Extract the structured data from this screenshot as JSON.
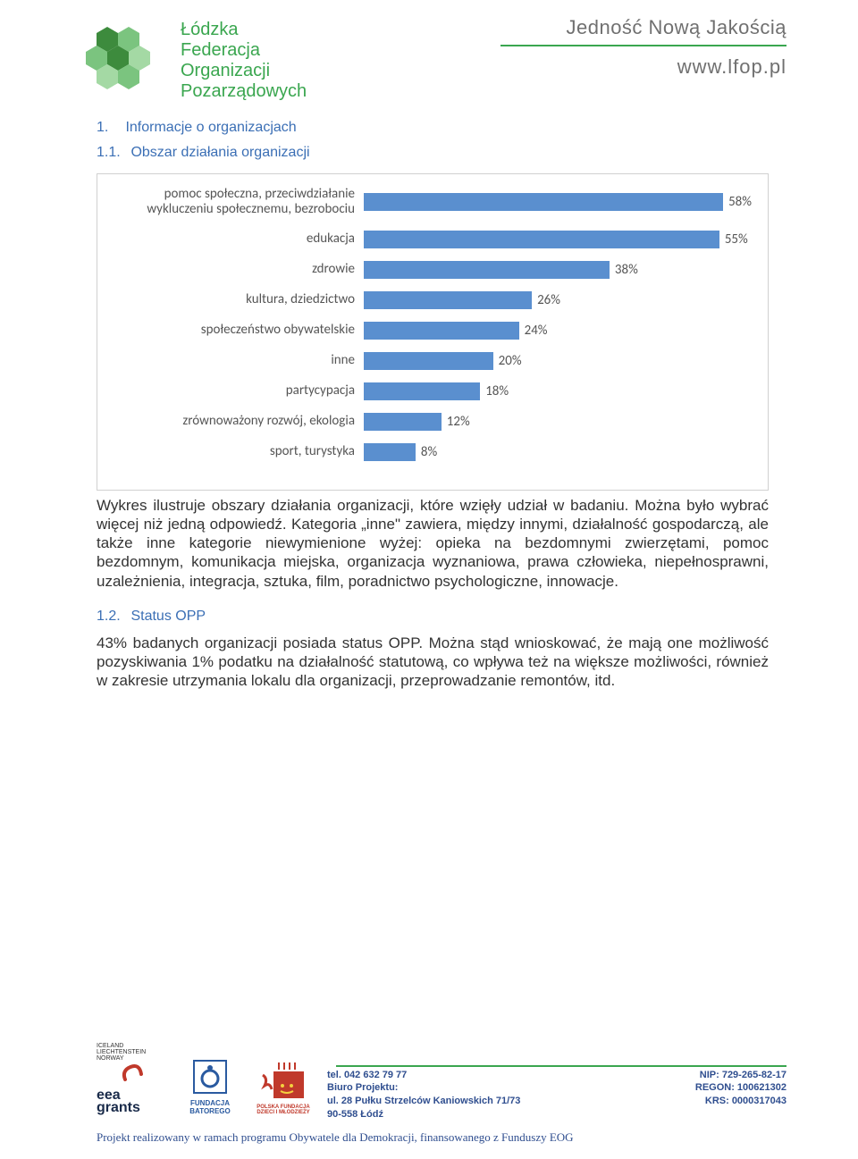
{
  "header": {
    "logo_lines": [
      "Łódzka",
      "Federacja",
      "Organizacji",
      "Pozarządowych"
    ],
    "tagline": "Jedność Nową Jakością",
    "url": "www.lfop.pl",
    "logo_color": "#52b24e"
  },
  "section1": {
    "num": "1.",
    "title": "Informacje o organizacjach"
  },
  "section11": {
    "num": "1.1.",
    "title": "Obszar działania organizacji"
  },
  "chart": {
    "bar_color": "#5a8fcf",
    "max": 60,
    "rows": [
      {
        "label": "pomoc społeczna, przeciwdziałanie wykluczeniu społecznemu, bezrobociu",
        "value": 58,
        "text": "58%"
      },
      {
        "label": "edukacja",
        "value": 55,
        "text": "55%"
      },
      {
        "label": "zdrowie",
        "value": 38,
        "text": "38%"
      },
      {
        "label": "kultura, dziedzictwo",
        "value": 26,
        "text": "26%"
      },
      {
        "label": "społeczeństwo obywatelskie",
        "value": 24,
        "text": "24%"
      },
      {
        "label": "inne",
        "value": 20,
        "text": "20%"
      },
      {
        "label": "partycypacja",
        "value": 18,
        "text": "18%"
      },
      {
        "label": "zrównoważony rozwój, ekologia",
        "value": 12,
        "text": "12%"
      },
      {
        "label": "sport, turystyka",
        "value": 8,
        "text": "8%"
      }
    ]
  },
  "para1": "Wykres ilustruje obszary działania organizacji, które wzięły udział w badaniu. Można było wybrać więcej niż jedną odpowiedź. Kategoria „inne\" zawiera, między innymi, działalność gospodarczą, ale także inne kategorie niewymienione wyżej: opieka na bezdomnymi zwierzętami, pomoc bezdomnym, komunikacja miejska, organizacja wyznaniowa, prawa człowieka, niepełnosprawni, uzależnienia, integracja, sztuka, film, poradnictwo psychologiczne, innowacje.",
  "section12": {
    "num": "1.2.",
    "title": "Status OPP"
  },
  "para2": "43% badanych organizacji posiada status OPP. Można stąd wnioskować, że mają one możliwość pozyskiwania 1% podatku na działalność statutową, co wpływa też na większe możliwości, również w zakresie utrzymania lokalu dla organizacji, przeprowadzanie remontów, itd.",
  "footer": {
    "logos": {
      "eea_top": "ICELAND LIECHTENSTEIN NORWAY",
      "eea": "eea grants",
      "batory": "FUNDACJA BATOREGO",
      "fdm": "POLSKA FUNDACJA DZIECI I MŁODZIEŻY"
    },
    "contact": {
      "tel": "tel. 042 632 79 77",
      "l1": "Biuro Projektu:",
      "l2": "ul. 28 Pułku Strzelców Kaniowskich 71/73",
      "l3": "90-558 Łódź"
    },
    "ids": {
      "nip": "NIP: 729-265-82-17",
      "regon": "REGON: 100621302",
      "krs": "KRS: 0000317043"
    },
    "note": "Projekt realizowany w ramach programu Obywatele dla Demokracji, finansowanego z Funduszy EOG"
  }
}
